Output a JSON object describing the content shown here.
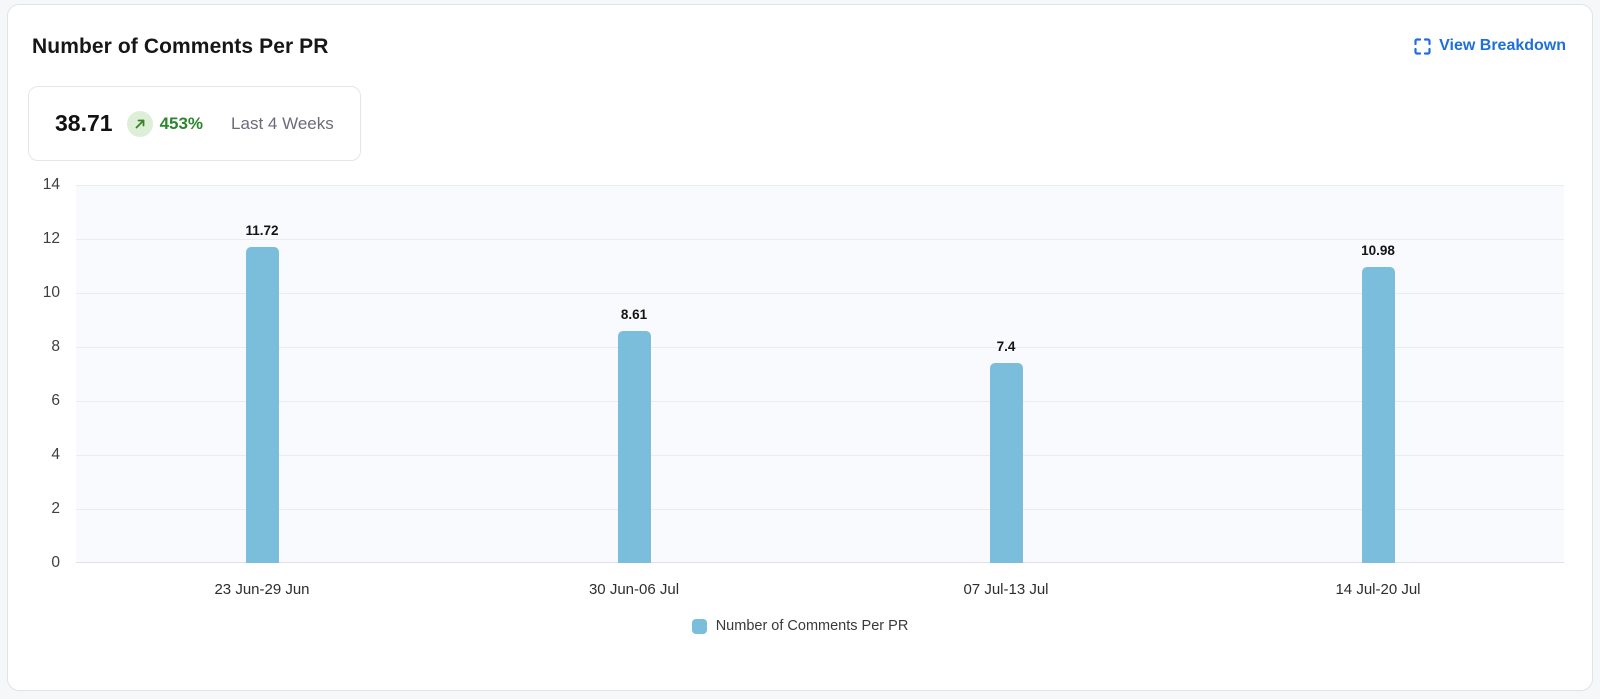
{
  "header": {
    "title": "Number of Comments Per PR",
    "view_breakdown_label": "View Breakdown",
    "link_color": "#1e6fd9"
  },
  "summary": {
    "value": "38.71",
    "change_percent": "453%",
    "change_direction": "up",
    "period_label": "Last 4 Weeks",
    "change_color": "#2b862c",
    "badge_bg": "#ddefd6"
  },
  "chart_data": {
    "type": "bar",
    "title": "Number of Comments Per PR",
    "categories": [
      "23 Jun-29 Jun",
      "30 Jun-06 Jul",
      "07 Jul-13 Jul",
      "14 Jul-20 Jul"
    ],
    "values": [
      11.72,
      8.61,
      7.4,
      10.98
    ],
    "value_labels": [
      "11.72",
      "8.61",
      "7.4",
      "10.98"
    ],
    "xlabel": "",
    "ylabel": "",
    "ylim": [
      0,
      14
    ],
    "y_ticks": [
      0,
      2,
      4,
      6,
      8,
      10,
      12,
      14
    ],
    "grid": true,
    "bar_color": "#7abedb",
    "plot_bg": "#f8fafd",
    "legend": {
      "label": "Number of Comments Per PR",
      "position": "bottom"
    }
  }
}
